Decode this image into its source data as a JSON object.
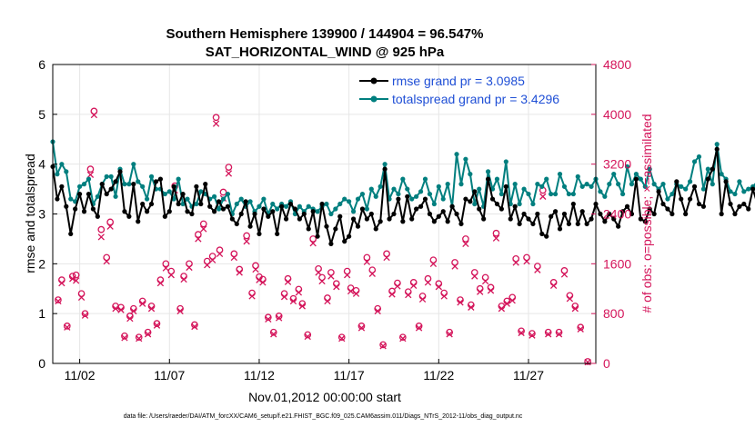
{
  "colors": {
    "rmse": "#000000",
    "spread": "#007f7f",
    "obs": "#d4145a",
    "legend_text": "#1f4fd6",
    "axis": "#000000"
  },
  "footer_text": "data file: /Users/raeder/DAI/ATM_forcXX/CAM6_setup/f.e21.FHIST_BGC.f09_025.CAM6assim.011/Diags_NTrS_2012-11/obs_diag_output.nc",
  "chart_data": {
    "type": "line",
    "title": "Southern Hemisphere 139900 / 144904 = 96.547%",
    "subtitle": "SAT_HORIZONTAL_WIND @ 925 hPa",
    "xlabel": "Nov.01,2012 00:00:00 start",
    "ylabel_left": "rmse and totalspread",
    "ylabel_right": "# of obs: o=possible; ×=assimilated",
    "xlim": [
      0.5,
      30.75
    ],
    "ylim_left": [
      0,
      6
    ],
    "ylim_right": [
      0,
      4800
    ],
    "yticks_left": [
      "0",
      "1",
      "2",
      "3",
      "4",
      "5",
      "6"
    ],
    "yticks_right": [
      "0",
      "800",
      "1600",
      "2400",
      "3200",
      "4000",
      "4800"
    ],
    "xtick_positions": [
      2,
      7,
      12,
      17,
      22,
      27
    ],
    "xtick_labels": [
      "11/02",
      "11/07",
      "11/12",
      "11/17",
      "11/22",
      "11/27"
    ],
    "x_start": 0.5,
    "x_step": 0.25,
    "legend": [
      {
        "name": "rmse",
        "label": "rmse grand pr = 3.0985"
      },
      {
        "name": "totalspread",
        "label": "totalspread grand pr = 3.4296"
      }
    ],
    "series": [
      {
        "name": "rmse",
        "axis": "left",
        "values": [
          3.95,
          3.3,
          3.55,
          3.15,
          2.6,
          3.1,
          3.4,
          3.05,
          3.4,
          3.1,
          2.95,
          3.6,
          3.4,
          3.5,
          3.65,
          3.85,
          3.05,
          2.95,
          3.6,
          2.85,
          3.2,
          3.05,
          3.2,
          3.65,
          3.7,
          2.95,
          3.05,
          3.55,
          3.2,
          3.4,
          3.05,
          3.0,
          3.55,
          3.2,
          3.6,
          3.15,
          3.05,
          3.25,
          3.1,
          3.15,
          2.9,
          2.8,
          3.0,
          3.25,
          2.75,
          3.0,
          2.6,
          3.1,
          2.95,
          3.05,
          2.6,
          3.15,
          2.9,
          3.2,
          3.1,
          2.9,
          3.0,
          2.7,
          3.05,
          2.55,
          3.2,
          2.75,
          2.4,
          2.7,
          2.95,
          2.45,
          2.55,
          2.9,
          2.75,
          3.1,
          2.9,
          3.0,
          2.7,
          2.85,
          3.9,
          2.9,
          3.0,
          3.3,
          2.85,
          3.35,
          2.9,
          3.1,
          3.15,
          3.3,
          3.0,
          2.85,
          2.95,
          3.05,
          2.85,
          3.15,
          3.0,
          2.8,
          3.3,
          3.25,
          3.45,
          3.1,
          2.9,
          3.7,
          3.3,
          3.2,
          3.1,
          3.55,
          2.9,
          3.15,
          2.8,
          3.0,
          2.9,
          2.8,
          3.0,
          2.6,
          2.55,
          2.95,
          3.05,
          2.7,
          3.0,
          2.8,
          3.2,
          2.8,
          3.05,
          2.8,
          2.9,
          3.2,
          3.0,
          2.85,
          3.0,
          2.9,
          2.75,
          3.05,
          3.15,
          3.0,
          3.7,
          2.9,
          2.85,
          3.1,
          3.0,
          3.45,
          3.2,
          3.1,
          3.0,
          3.65,
          3.3,
          3.0,
          3.3,
          3.55,
          3.2,
          3.15,
          3.7,
          3.9,
          4.3,
          3.0,
          3.65,
          3.2,
          3.0,
          3.15,
          3.2,
          3.1,
          3.5,
          3.2,
          3.15,
          3.25,
          3.2,
          2.75
        ]
      },
      {
        "name": "totalspread",
        "axis": "left",
        "values": [
          4.45,
          3.8,
          4.0,
          3.85,
          3.3,
          3.25,
          3.55,
          3.6,
          3.7,
          3.2,
          3.35,
          3.6,
          3.75,
          3.75,
          3.35,
          3.9,
          3.6,
          3.6,
          4.0,
          3.65,
          3.55,
          3.3,
          3.75,
          3.5,
          3.5,
          3.4,
          3.45,
          3.3,
          3.7,
          3.2,
          3.3,
          3.15,
          3.2,
          3.45,
          3.4,
          3.3,
          3.35,
          3.1,
          3.3,
          3.4,
          3.0,
          3.2,
          3.3,
          3.15,
          3.25,
          3.05,
          3.15,
          3.3,
          3.0,
          3.2,
          3.1,
          3.2,
          3.15,
          3.25,
          3.0,
          3.15,
          3.05,
          3.15,
          3.1,
          3.05,
          3.15,
          3.2,
          3.0,
          3.1,
          3.2,
          3.3,
          3.25,
          3.05,
          3.3,
          3.4,
          3.1,
          3.5,
          3.35,
          3.55,
          4.0,
          3.3,
          3.5,
          3.4,
          3.7,
          3.5,
          3.3,
          3.35,
          3.45,
          3.7,
          3.4,
          3.2,
          3.55,
          3.3,
          3.6,
          3.15,
          4.2,
          3.6,
          4.1,
          3.8,
          3.2,
          3.5,
          3.15,
          3.85,
          3.5,
          3.7,
          3.4,
          4.05,
          3.2,
          3.6,
          3.2,
          3.5,
          3.4,
          3.2,
          3.6,
          3.55,
          3.7,
          3.4,
          3.4,
          3.8,
          3.55,
          3.4,
          3.4,
          3.75,
          3.55,
          3.6,
          3.55,
          3.7,
          3.45,
          3.35,
          3.6,
          3.8,
          3.6,
          3.4,
          3.95,
          3.6,
          3.8,
          3.7,
          3.55,
          3.9,
          3.6,
          3.5,
          3.6,
          3.3,
          3.4,
          3.6,
          3.55,
          3.5,
          3.65,
          4.05,
          4.15,
          3.5,
          3.9,
          3.6,
          4.4,
          3.8,
          3.7,
          3.45,
          3.4,
          3.65,
          3.45,
          3.5,
          3.55,
          3.65,
          3.65,
          3.5
        ]
      }
    ],
    "obs_possible": [
      [
        0.8,
        1020
      ],
      [
        1.0,
        1340
      ],
      [
        1.3,
        600
      ],
      [
        1.6,
        1400
      ],
      [
        1.8,
        1420
      ],
      [
        2.1,
        1120
      ],
      [
        2.3,
        800
      ],
      [
        2.6,
        3120
      ],
      [
        2.8,
        4050
      ],
      [
        3.2,
        2150
      ],
      [
        3.5,
        1700
      ],
      [
        3.7,
        2270
      ],
      [
        4.0,
        920
      ],
      [
        4.3,
        900
      ],
      [
        4.5,
        440
      ],
      [
        4.8,
        760
      ],
      [
        5.0,
        880
      ],
      [
        5.3,
        420
      ],
      [
        5.5,
        1000
      ],
      [
        5.8,
        500
      ],
      [
        6.0,
        920
      ],
      [
        6.3,
        640
      ],
      [
        6.5,
        1340
      ],
      [
        6.8,
        1600
      ],
      [
        7.1,
        1480
      ],
      [
        7.3,
        2850
      ],
      [
        7.6,
        880
      ],
      [
        7.8,
        1400
      ],
      [
        8.1,
        1600
      ],
      [
        8.4,
        620
      ],
      [
        8.6,
        2070
      ],
      [
        8.9,
        2240
      ],
      [
        9.1,
        1640
      ],
      [
        9.4,
        1720
      ],
      [
        9.6,
        3950
      ],
      [
        9.8,
        1820
      ],
      [
        10.0,
        2750
      ],
      [
        10.3,
        3150
      ],
      [
        10.6,
        1760
      ],
      [
        10.9,
        1510
      ],
      [
        11.3,
        2050
      ],
      [
        11.6,
        1130
      ],
      [
        11.8,
        1570
      ],
      [
        12.0,
        1390
      ],
      [
        12.2,
        1350
      ],
      [
        12.5,
        740
      ],
      [
        12.8,
        500
      ],
      [
        13.1,
        760
      ],
      [
        13.4,
        1120
      ],
      [
        13.6,
        1360
      ],
      [
        13.9,
        1040
      ],
      [
        14.2,
        1190
      ],
      [
        14.4,
        960
      ],
      [
        14.7,
        460
      ],
      [
        15.0,
        2000
      ],
      [
        15.3,
        1520
      ],
      [
        15.5,
        1380
      ],
      [
        15.8,
        1050
      ],
      [
        16.0,
        1460
      ],
      [
        16.3,
        1280
      ],
      [
        16.6,
        420
      ],
      [
        16.9,
        1480
      ],
      [
        17.1,
        1210
      ],
      [
        17.4,
        1170
      ],
      [
        17.7,
        600
      ],
      [
        18.0,
        1700
      ],
      [
        18.3,
        1500
      ],
      [
        18.6,
        880
      ],
      [
        18.9,
        300
      ],
      [
        19.1,
        1760
      ],
      [
        19.4,
        1160
      ],
      [
        19.7,
        1290
      ],
      [
        20.0,
        420
      ],
      [
        20.3,
        1150
      ],
      [
        20.6,
        1300
      ],
      [
        20.9,
        600
      ],
      [
        21.1,
        1080
      ],
      [
        21.4,
        1360
      ],
      [
        21.7,
        1660
      ],
      [
        22.0,
        1280
      ],
      [
        22.3,
        1130
      ],
      [
        22.6,
        500
      ],
      [
        22.9,
        1620
      ],
      [
        23.2,
        1020
      ],
      [
        23.5,
        2000
      ],
      [
        23.8,
        940
      ],
      [
        24.0,
        1460
      ],
      [
        24.3,
        1200
      ],
      [
        24.6,
        1380
      ],
      [
        24.9,
        1220
      ],
      [
        25.2,
        2090
      ],
      [
        25.5,
        920
      ],
      [
        25.8,
        1000
      ],
      [
        26.1,
        1060
      ],
      [
        26.3,
        1680
      ],
      [
        26.6,
        520
      ],
      [
        26.9,
        1700
      ],
      [
        27.2,
        480
      ],
      [
        27.5,
        1560
      ],
      [
        27.8,
        2780
      ],
      [
        28.1,
        500
      ],
      [
        28.4,
        1300
      ],
      [
        28.7,
        500
      ],
      [
        29.0,
        1490
      ],
      [
        29.3,
        1090
      ],
      [
        29.6,
        920
      ],
      [
        29.9,
        580
      ],
      [
        30.3,
        30
      ]
    ],
    "obs_assimilated": [
      [
        0.8,
        1000
      ],
      [
        1.0,
        1290
      ],
      [
        1.3,
        580
      ],
      [
        1.6,
        1360
      ],
      [
        1.8,
        1330
      ],
      [
        2.1,
        1060
      ],
      [
        2.3,
        770
      ],
      [
        2.6,
        3030
      ],
      [
        2.8,
        3990
      ],
      [
        3.2,
        2030
      ],
      [
        3.5,
        1640
      ],
      [
        3.7,
        2200
      ],
      [
        4.0,
        880
      ],
      [
        4.3,
        860
      ],
      [
        4.5,
        410
      ],
      [
        4.8,
        720
      ],
      [
        5.0,
        840
      ],
      [
        5.3,
        400
      ],
      [
        5.5,
        960
      ],
      [
        5.8,
        470
      ],
      [
        6.0,
        880
      ],
      [
        6.3,
        610
      ],
      [
        6.5,
        1290
      ],
      [
        6.8,
        1530
      ],
      [
        7.1,
        1420
      ],
      [
        7.3,
        2780
      ],
      [
        7.6,
        840
      ],
      [
        7.8,
        1350
      ],
      [
        8.1,
        1540
      ],
      [
        8.4,
        590
      ],
      [
        8.6,
        2000
      ],
      [
        8.9,
        2160
      ],
      [
        9.1,
        1580
      ],
      [
        9.4,
        1660
      ],
      [
        9.6,
        3850
      ],
      [
        9.8,
        1760
      ],
      [
        10.0,
        2650
      ],
      [
        10.3,
        3050
      ],
      [
        10.6,
        1700
      ],
      [
        10.9,
        1460
      ],
      [
        11.3,
        1960
      ],
      [
        11.6,
        1080
      ],
      [
        11.8,
        1510
      ],
      [
        12.0,
        1340
      ],
      [
        12.2,
        1300
      ],
      [
        12.5,
        710
      ],
      [
        12.8,
        470
      ],
      [
        13.1,
        730
      ],
      [
        13.4,
        1070
      ],
      [
        13.6,
        1310
      ],
      [
        13.9,
        1000
      ],
      [
        14.2,
        1140
      ],
      [
        14.4,
        920
      ],
      [
        14.7,
        430
      ],
      [
        15.0,
        1930
      ],
      [
        15.3,
        1460
      ],
      [
        15.5,
        1320
      ],
      [
        15.8,
        1000
      ],
      [
        16.0,
        1400
      ],
      [
        16.3,
        1230
      ],
      [
        16.6,
        400
      ],
      [
        16.9,
        1420
      ],
      [
        17.1,
        1160
      ],
      [
        17.4,
        1120
      ],
      [
        17.7,
        570
      ],
      [
        18.0,
        1630
      ],
      [
        18.3,
        1440
      ],
      [
        18.6,
        840
      ],
      [
        18.9,
        280
      ],
      [
        19.1,
        1700
      ],
      [
        19.4,
        1110
      ],
      [
        19.7,
        1240
      ],
      [
        20.0,
        400
      ],
      [
        20.3,
        1100
      ],
      [
        20.6,
        1250
      ],
      [
        20.9,
        570
      ],
      [
        21.1,
        1030
      ],
      [
        21.4,
        1300
      ],
      [
        21.7,
        1600
      ],
      [
        22.0,
        1230
      ],
      [
        22.3,
        1080
      ],
      [
        22.6,
        470
      ],
      [
        22.9,
        1560
      ],
      [
        23.2,
        980
      ],
      [
        23.5,
        1920
      ],
      [
        23.8,
        900
      ],
      [
        24.0,
        1400
      ],
      [
        24.3,
        1150
      ],
      [
        24.6,
        1320
      ],
      [
        24.9,
        1170
      ],
      [
        25.2,
        2010
      ],
      [
        25.5,
        880
      ],
      [
        25.8,
        960
      ],
      [
        26.1,
        1010
      ],
      [
        26.3,
        1620
      ],
      [
        26.6,
        490
      ],
      [
        26.9,
        1640
      ],
      [
        27.2,
        450
      ],
      [
        27.5,
        1500
      ],
      [
        27.8,
        2680
      ],
      [
        28.1,
        470
      ],
      [
        28.4,
        1250
      ],
      [
        28.7,
        470
      ],
      [
        29.0,
        1430
      ],
      [
        29.3,
        1040
      ],
      [
        29.6,
        880
      ],
      [
        29.9,
        550
      ],
      [
        30.3,
        20
      ]
    ]
  }
}
